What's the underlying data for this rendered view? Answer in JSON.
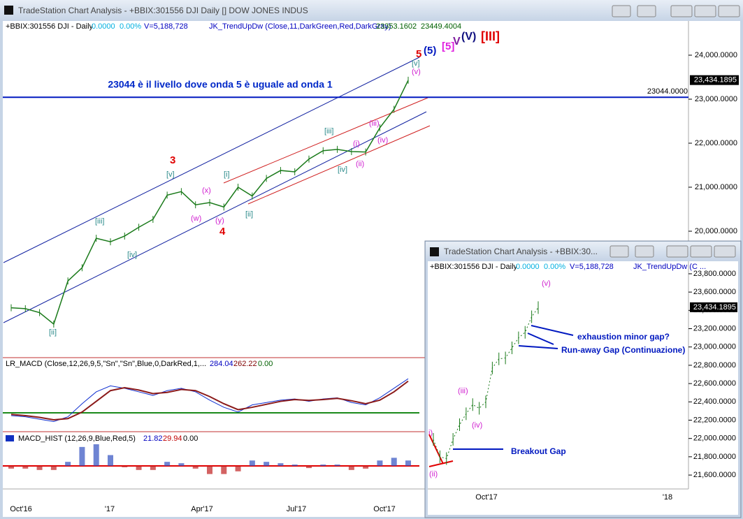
{
  "main_window": {
    "title": "TradeStation Chart Analysis - +BBIX:301556 DJI Daily [] DOW JONES INDUS",
    "legend": {
      "symbol": "+BBIX:301556 DJI - Daily",
      "change": "0.0000",
      "pct": "0.00%",
      "volume": "V=5,188,728",
      "indicator": "JK_TrendUpDw (Close,11,DarkGreen,Red,DarkGray)",
      "v1": "23353.1602",
      "v2": "23449.4004"
    },
    "ylim": [
      17127,
      24778
    ],
    "yticks": [
      {
        "value": 24000,
        "label": "24,000.0000"
      },
      {
        "value": 23000,
        "label": "23,000.0000"
      },
      {
        "value": 22000,
        "label": "22,000.0000"
      },
      {
        "value": 21000,
        "label": "21,000.0000"
      },
      {
        "value": 20000,
        "label": "20,000.0000"
      }
    ],
    "last_price": {
      "value": 23434.1895,
      "label": "23,434.1895"
    },
    "level": {
      "value": 23044,
      "label": "23044.0000"
    },
    "annotation": "23044 è il livello dove onda 5 è uguale ad onda 1",
    "prices": [
      18260,
      18240,
      18150,
      17890,
      18870,
      19170,
      19840,
      19760,
      19890,
      20090,
      20270,
      20820,
      20900,
      20600,
      20650,
      20550,
      21000,
      20800,
      21200,
      21380,
      21350,
      21640,
      21830,
      21860,
      21810,
      21800,
      22350,
      22770,
      23430
    ],
    "xlabels": [
      "Oct'16",
      "'17",
      "Apr'17",
      "Jul'17",
      "Oct'17"
    ],
    "waves": [
      "3",
      "4",
      "5",
      "(5)",
      "[5]",
      "V",
      "(V)",
      "[III]",
      "[v]",
      "(v)",
      "[v]",
      "[iii]",
      "[iv]",
      "[ii]",
      "(x)",
      "(w)",
      "(y)",
      "[i]",
      "[ii]",
      "[iii]",
      "[iv]",
      "(i)",
      "(ii)",
      "(iii)",
      "(iv)"
    ],
    "macd": {
      "label": "LR_MACD (Close,12,26,9,5,\"Sn\",\"Sn\",Blue,0,DarkRed,1,...",
      "v1": "284.04",
      "v2": "262.22",
      "v3": "0.00",
      "ylim": [
        -150,
        320
      ],
      "values": [
        -50,
        -60,
        -80,
        -100,
        -60,
        50,
        150,
        200,
        180,
        150,
        120,
        160,
        180,
        150,
        80,
        20,
        -20,
        40,
        60,
        80,
        90,
        70,
        90,
        100,
        60,
        40,
        100,
        180,
        260
      ],
      "signal": [
        -40,
        -50,
        -65,
        -85,
        -75,
        -20,
        70,
        160,
        185,
        165,
        135,
        145,
        170,
        160,
        110,
        50,
        0,
        20,
        45,
        70,
        85,
        78,
        85,
        95,
        75,
        50,
        80,
        150,
        240
      ]
    },
    "hist": {
      "label": "MACD_HIST (12,26,9,Blue,Red,5)",
      "v1": "21.82",
      "v2": "29.94",
      "v3": "0.00",
      "ylim": [
        -80,
        80
      ],
      "values": [
        -10,
        -10,
        -15,
        -15,
        15,
        70,
        80,
        40,
        -5,
        -15,
        -15,
        15,
        10,
        -10,
        -30,
        -30,
        -20,
        20,
        15,
        10,
        5,
        -8,
        5,
        5,
        -15,
        -10,
        20,
        30,
        20
      ]
    }
  },
  "inset_window": {
    "title": "TradeStation Chart Analysis - +BBIX:30...",
    "legend": {
      "symbol": "+BBIX:301556 DJI - Daily",
      "change": "0.0000",
      "pct": "0.00%",
      "volume": "V=5,188,728",
      "indicator": "JK_TrendUpDw (C ..."
    },
    "ylim": [
      21448,
      23937
    ],
    "yticks": [
      {
        "value": 23800,
        "label": "23,800.0000"
      },
      {
        "value": 23600,
        "label": "23,600.0000"
      },
      {
        "value": 23400,
        "label": "23,400.0000"
      },
      {
        "value": 23200,
        "label": "23,200.0000"
      },
      {
        "value": 23000,
        "label": "23,000.0000"
      },
      {
        "value": 22800,
        "label": "22,800.0000"
      },
      {
        "value": 22600,
        "label": "22,600.0000"
      },
      {
        "value": 22400,
        "label": "22,400.0000"
      },
      {
        "value": 22200,
        "label": "22,200.0000"
      },
      {
        "value": 22000,
        "label": "22,000.0000"
      },
      {
        "value": 21800,
        "label": "21,800.0000"
      },
      {
        "value": 21600,
        "label": "21,600.0000"
      }
    ],
    "last_price": {
      "value": 23434.1895,
      "label": "23,434.1895"
    },
    "prices": [
      21990,
      21800,
      21780,
      21990,
      22150,
      22270,
      22370,
      22330,
      22400,
      22770,
      22870,
      22880,
      22990,
      23100,
      23160,
      23330,
      23430
    ],
    "xlabels": [
      "Oct'17",
      "'18"
    ],
    "waves": [
      "(v)",
      "(iii)",
      "(iv)",
      "(ii)",
      "i)"
    ],
    "annotations": [
      "exhaustion minor gap?",
      "Run-away Gap (Continuazione)",
      "Breakout Gap"
    ]
  }
}
